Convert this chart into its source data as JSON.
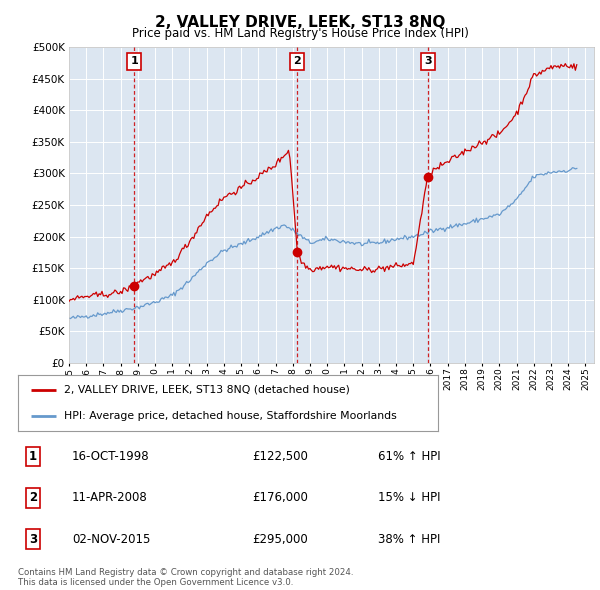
{
  "title": "2, VALLEY DRIVE, LEEK, ST13 8NQ",
  "subtitle": "Price paid vs. HM Land Registry's House Price Index (HPI)",
  "legend_label_red": "2, VALLEY DRIVE, LEEK, ST13 8NQ (detached house)",
  "legend_label_blue": "HPI: Average price, detached house, Staffordshire Moorlands",
  "plot_bg_color": "#dce6f1",
  "footer": "Contains HM Land Registry data © Crown copyright and database right 2024.\nThis data is licensed under the Open Government Licence v3.0.",
  "sale_markers": [
    {
      "num": 1,
      "date": "16-OCT-1998",
      "price": 122500,
      "hpi_pct": "61% ↑ HPI",
      "x_year": 1998.79
    },
    {
      "num": 2,
      "date": "11-APR-2008",
      "price": 176000,
      "hpi_pct": "15% ↓ HPI",
      "x_year": 2008.27
    },
    {
      "num": 3,
      "date": "02-NOV-2015",
      "price": 295000,
      "hpi_pct": "38% ↑ HPI",
      "x_year": 2015.84
    }
  ],
  "ylim": [
    0,
    500000
  ],
  "yticks": [
    0,
    50000,
    100000,
    150000,
    200000,
    250000,
    300000,
    350000,
    400000,
    450000,
    500000
  ],
  "xlim_start": 1995.0,
  "xlim_end": 2025.5,
  "red_color": "#cc0000",
  "blue_color": "#6699cc",
  "hpi_key_points": [
    [
      1995.0,
      70000
    ],
    [
      1996.0,
      74000
    ],
    [
      1997.0,
      78000
    ],
    [
      1998.0,
      83000
    ],
    [
      1999.0,
      88000
    ],
    [
      2000.0,
      96000
    ],
    [
      2001.0,
      107000
    ],
    [
      2002.0,
      130000
    ],
    [
      2003.0,
      158000
    ],
    [
      2004.0,
      178000
    ],
    [
      2005.0,
      188000
    ],
    [
      2006.0,
      200000
    ],
    [
      2007.0,
      213000
    ],
    [
      2007.5,
      218000
    ],
    [
      2008.0,
      210000
    ],
    [
      2009.0,
      190000
    ],
    [
      2010.0,
      196000
    ],
    [
      2011.0,
      192000
    ],
    [
      2012.0,
      188000
    ],
    [
      2013.0,
      190000
    ],
    [
      2014.0,
      196000
    ],
    [
      2015.0,
      200000
    ],
    [
      2016.0,
      208000
    ],
    [
      2017.0,
      215000
    ],
    [
      2018.0,
      220000
    ],
    [
      2019.0,
      228000
    ],
    [
      2020.0,
      235000
    ],
    [
      2021.0,
      258000
    ],
    [
      2022.0,
      295000
    ],
    [
      2023.0,
      302000
    ],
    [
      2024.0,
      305000
    ],
    [
      2024.5,
      308000
    ]
  ],
  "prop_key_points": [
    [
      1995.0,
      100000
    ],
    [
      1996.0,
      105000
    ],
    [
      1997.0,
      108000
    ],
    [
      1998.0,
      112000
    ],
    [
      1998.79,
      122500
    ],
    [
      1999.0,
      128000
    ],
    [
      2000.0,
      140000
    ],
    [
      2001.0,
      158000
    ],
    [
      2002.0,
      192000
    ],
    [
      2003.0,
      233000
    ],
    [
      2004.0,
      262000
    ],
    [
      2005.0,
      277000
    ],
    [
      2006.0,
      295000
    ],
    [
      2007.0,
      314000
    ],
    [
      2007.8,
      338000
    ],
    [
      2008.27,
      176000
    ],
    [
      2008.5,
      160000
    ],
    [
      2009.0,
      148000
    ],
    [
      2010.0,
      153000
    ],
    [
      2011.0,
      150000
    ],
    [
      2012.0,
      147000
    ],
    [
      2013.0,
      149000
    ],
    [
      2014.0,
      153000
    ],
    [
      2015.0,
      157000
    ],
    [
      2015.84,
      295000
    ],
    [
      2016.0,
      302000
    ],
    [
      2017.0,
      318000
    ],
    [
      2018.0,
      335000
    ],
    [
      2019.0,
      350000
    ],
    [
      2020.0,
      362000
    ],
    [
      2021.0,
      395000
    ],
    [
      2022.0,
      455000
    ],
    [
      2023.0,
      468000
    ],
    [
      2024.0,
      472000
    ],
    [
      2024.5,
      468000
    ]
  ]
}
